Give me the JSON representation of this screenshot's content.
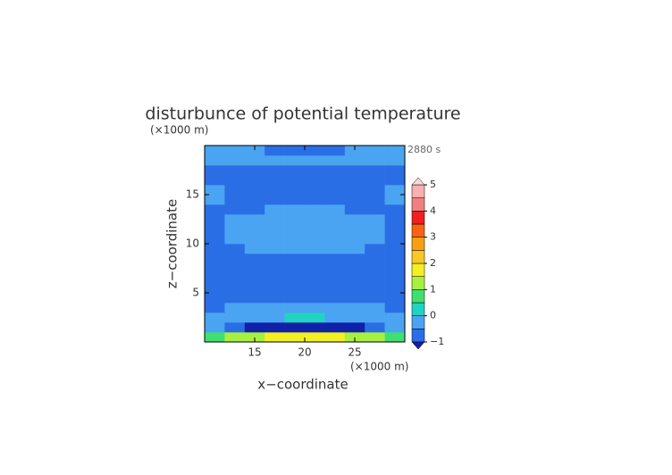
{
  "chart_data": {
    "type": "contour",
    "title": "disturbunce of potential temperature",
    "x_unit": "(×1000 m)",
    "y_unit": "(×1000 m)",
    "time_label": "2880 s",
    "xlabel": "x−coordinate",
    "ylabel": "z−coordinate",
    "xlim": [
      10,
      30
    ],
    "ylim": [
      0,
      20
    ],
    "xticks": [
      15,
      20,
      25
    ],
    "yticks": [
      5,
      10,
      15
    ],
    "x": [
      11,
      13,
      15,
      17,
      19,
      21,
      23,
      25,
      27,
      29
    ],
    "y": [
      0.5,
      1.5,
      2.5,
      3.5,
      4.5,
      5.5,
      6.5,
      7.5,
      8.5,
      9.5,
      10.5,
      11.5,
      12.5,
      13.5,
      14.5,
      15.5,
      16.5,
      17.5,
      18.5,
      19.5
    ],
    "z": [
      [
        0.8,
        1.2,
        1.5,
        1.8,
        1.8,
        1.8,
        1.8,
        1.5,
        1.2,
        0.8
      ],
      [
        -0.3,
        -0.6,
        -1.2,
        -1.2,
        -1.2,
        -1.2,
        -1.2,
        -1.2,
        -0.6,
        -0.3
      ],
      [
        -0.3,
        -0.3,
        -0.3,
        -0.3,
        0.2,
        0.2,
        -0.3,
        -0.3,
        -0.3,
        -0.3
      ],
      [
        -0.6,
        -0.3,
        -0.3,
        -0.3,
        -0.3,
        -0.3,
        -0.3,
        -0.3,
        -0.3,
        -0.6
      ],
      [
        -0.6,
        -0.6,
        -0.6,
        -0.6,
        -0.6,
        -0.6,
        -0.6,
        -0.6,
        -0.6,
        -0.6
      ],
      [
        -0.6,
        -0.6,
        -0.6,
        -0.6,
        -0.6,
        -0.6,
        -0.6,
        -0.6,
        -0.6,
        -0.6
      ],
      [
        -0.6,
        -0.6,
        -0.6,
        -0.6,
        -0.6,
        -0.6,
        -0.6,
        -0.6,
        -0.6,
        -0.6
      ],
      [
        -0.6,
        -0.6,
        -0.6,
        -0.6,
        -0.6,
        -0.6,
        -0.6,
        -0.6,
        -0.6,
        -0.6
      ],
      [
        -0.6,
        -0.6,
        -0.6,
        -0.6,
        -0.6,
        -0.6,
        -0.6,
        -0.6,
        -0.6,
        -0.6
      ],
      [
        -0.6,
        -0.6,
        -0.3,
        -0.3,
        -0.3,
        -0.3,
        -0.3,
        -0.3,
        -0.6,
        -0.6
      ],
      [
        -0.6,
        -0.3,
        -0.3,
        -0.3,
        -0.3,
        -0.3,
        -0.3,
        -0.3,
        -0.3,
        -0.6
      ],
      [
        -0.6,
        -0.3,
        -0.3,
        -0.3,
        -0.3,
        -0.3,
        -0.3,
        -0.3,
        -0.3,
        -0.6
      ],
      [
        -0.6,
        -0.3,
        -0.3,
        -0.3,
        -0.3,
        -0.3,
        -0.3,
        -0.3,
        -0.3,
        -0.6
      ],
      [
        -0.6,
        -0.6,
        -0.6,
        -0.3,
        -0.3,
        -0.3,
        -0.3,
        -0.6,
        -0.6,
        -0.6
      ],
      [
        -0.3,
        -0.6,
        -0.6,
        -0.6,
        -0.6,
        -0.6,
        -0.6,
        -0.6,
        -0.6,
        -0.3
      ],
      [
        -0.3,
        -0.6,
        -0.6,
        -0.6,
        -0.6,
        -0.6,
        -0.6,
        -0.6,
        -0.6,
        -0.3
      ],
      [
        -0.6,
        -0.6,
        -0.6,
        -0.6,
        -0.6,
        -0.6,
        -0.6,
        -0.6,
        -0.6,
        -0.6
      ],
      [
        -0.6,
        -0.6,
        -0.6,
        -0.6,
        -0.6,
        -0.6,
        -0.6,
        -0.6,
        -0.6,
        -0.6
      ],
      [
        -0.3,
        -0.3,
        -0.3,
        -0.3,
        -0.3,
        -0.3,
        -0.3,
        -0.3,
        -0.3,
        -0.3
      ],
      [
        -0.3,
        -0.3,
        -0.3,
        -0.6,
        -0.6,
        -0.6,
        -0.6,
        -0.3,
        -0.3,
        -0.3
      ]
    ],
    "levels": [
      -1,
      -0.5,
      0,
      0.5,
      1,
      1.5,
      2,
      2.5,
      3,
      3.5,
      4,
      4.5,
      5
    ],
    "colors": [
      "#2a6ee6",
      "#4aa4f2",
      "#22d2c2",
      "#40e070",
      "#a8f040",
      "#f2f020",
      "#f8c828",
      "#f8a010",
      "#f86414",
      "#ee2020",
      "#f08080",
      "#f8b0b0"
    ],
    "below_color": "#1020a8",
    "above_color": "#f8d8d8",
    "cbticks": [
      5,
      4,
      3,
      2,
      1,
      0,
      {
        "value": -1,
        "label": "−1"
      }
    ]
  }
}
